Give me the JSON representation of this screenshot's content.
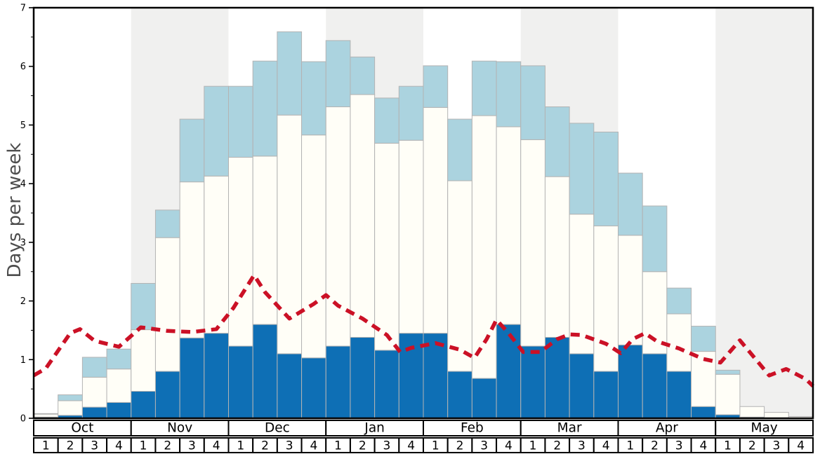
{
  "chart_data": {
    "type": "bar",
    "stacked": true,
    "title": "",
    "ylabel": "Days per week",
    "xlabel": "",
    "ylim": [
      0,
      7
    ],
    "y_tick_labels": [
      "0",
      "1",
      "2",
      "3",
      "4",
      "5",
      "6",
      "7"
    ],
    "y_minor_tick_step": 0.5,
    "grid": false,
    "legend": "none",
    "months": [
      {
        "label": "Oct",
        "shaded": false
      },
      {
        "label": "Nov",
        "shaded": true
      },
      {
        "label": "Dec",
        "shaded": false
      },
      {
        "label": "Jan",
        "shaded": true
      },
      {
        "label": "Feb",
        "shaded": false
      },
      {
        "label": "Mar",
        "shaded": true
      },
      {
        "label": "Apr",
        "shaded": false
      },
      {
        "label": "May",
        "shaded": true
      }
    ],
    "week_numbers": [
      "1",
      "2",
      "3",
      "4"
    ],
    "categories": [
      "Oct-1",
      "Oct-2",
      "Oct-3",
      "Oct-4",
      "Nov-1",
      "Nov-2",
      "Nov-3",
      "Nov-4",
      "Dec-1",
      "Dec-2",
      "Dec-3",
      "Dec-4",
      "Jan-1",
      "Jan-2",
      "Jan-3",
      "Jan-4",
      "Feb-1",
      "Feb-2",
      "Feb-3",
      "Feb-4",
      "Mar-1",
      "Mar-2",
      "Mar-3",
      "Mar-4",
      "Apr-1",
      "Apr-2",
      "Apr-3",
      "Apr-4",
      "May-1",
      "May-2",
      "May-3",
      "May-4"
    ],
    "series": [
      {
        "name": "dark-blue-bottom-segment",
        "color": "#0e6fb5",
        "cumulative_top": [
          0.02,
          0.05,
          0.19,
          0.27,
          0.46,
          0.8,
          1.37,
          1.45,
          1.23,
          1.6,
          1.1,
          1.03,
          1.23,
          1.38,
          1.16,
          1.45,
          1.45,
          0.8,
          0.68,
          1.6,
          1.23,
          1.38,
          1.1,
          0.8,
          1.25,
          1.1,
          0.8,
          0.2,
          0.06,
          0.02,
          0.0,
          0.0
        ]
      },
      {
        "name": "white-middle-segment",
        "color": "#fffef7",
        "cumulative_top": [
          0.07,
          0.3,
          0.7,
          0.84,
          1.51,
          3.08,
          4.03,
          4.13,
          4.45,
          4.47,
          5.17,
          4.83,
          5.31,
          5.52,
          4.69,
          4.74,
          5.3,
          4.05,
          5.16,
          4.97,
          4.75,
          4.12,
          3.48,
          3.28,
          3.12,
          2.5,
          1.78,
          1.14,
          0.75,
          0.2,
          0.1,
          0.03
        ]
      },
      {
        "name": "light-blue-top-segment",
        "color": "#abd3df",
        "cumulative_top": [
          0.08,
          0.4,
          1.04,
          1.18,
          2.3,
          3.55,
          5.1,
          5.66,
          5.66,
          6.09,
          6.59,
          6.08,
          6.44,
          6.16,
          5.46,
          5.66,
          6.01,
          5.1,
          6.09,
          6.08,
          6.01,
          5.31,
          5.03,
          4.88,
          4.18,
          3.62,
          2.22,
          1.57,
          0.82,
          0.2,
          0.1,
          0.03
        ]
      }
    ],
    "line_series": {
      "name": "red-dashed-line",
      "color": "#cb1126",
      "style": "dashed",
      "points_week_units": [
        [
          0,
          0.73
        ],
        [
          0.5,
          0.85
        ],
        [
          1.5,
          1.45
        ],
        [
          1.9,
          1.52
        ],
        [
          2.5,
          1.32
        ],
        [
          3.5,
          1.22
        ],
        [
          4.4,
          1.55
        ],
        [
          5.5,
          1.49
        ],
        [
          6.5,
          1.47
        ],
        [
          7.5,
          1.52
        ],
        [
          8.2,
          1.88
        ],
        [
          9.05,
          2.44
        ],
        [
          9.5,
          2.15
        ],
        [
          10.5,
          1.7
        ],
        [
          11.5,
          1.95
        ],
        [
          12.0,
          2.1
        ],
        [
          12.5,
          1.92
        ],
        [
          13.5,
          1.7
        ],
        [
          14.5,
          1.42
        ],
        [
          15.05,
          1.13
        ],
        [
          15.5,
          1.2
        ],
        [
          16.5,
          1.28
        ],
        [
          17.5,
          1.17
        ],
        [
          18.1,
          1.03
        ],
        [
          18.6,
          1.35
        ],
        [
          19.0,
          1.68
        ],
        [
          19.5,
          1.45
        ],
        [
          20.1,
          1.13
        ],
        [
          20.8,
          1.13
        ],
        [
          21.5,
          1.35
        ],
        [
          22.0,
          1.43
        ],
        [
          22.5,
          1.42
        ],
        [
          23.5,
          1.27
        ],
        [
          24.1,
          1.11
        ],
        [
          24.6,
          1.35
        ],
        [
          25.1,
          1.45
        ],
        [
          25.6,
          1.31
        ],
        [
          26.5,
          1.19
        ],
        [
          27.5,
          1.01
        ],
        [
          28.2,
          0.95
        ],
        [
          29.0,
          1.33
        ],
        [
          29.6,
          1.03
        ],
        [
          30.2,
          0.73
        ],
        [
          30.9,
          0.84
        ],
        [
          31.7,
          0.67
        ],
        [
          32,
          0.55
        ]
      ]
    },
    "colors": {
      "shaded_month_band": "#f0f0ef",
      "bar_border": "#b3b3b3",
      "axis_frame": "#000000",
      "tick_label": "#000000",
      "month_week_cell_bg": "#ffffff",
      "month_week_cell_border": "#000000",
      "y_axis_title": "#4d4d4d",
      "background": "#ffffff"
    }
  }
}
